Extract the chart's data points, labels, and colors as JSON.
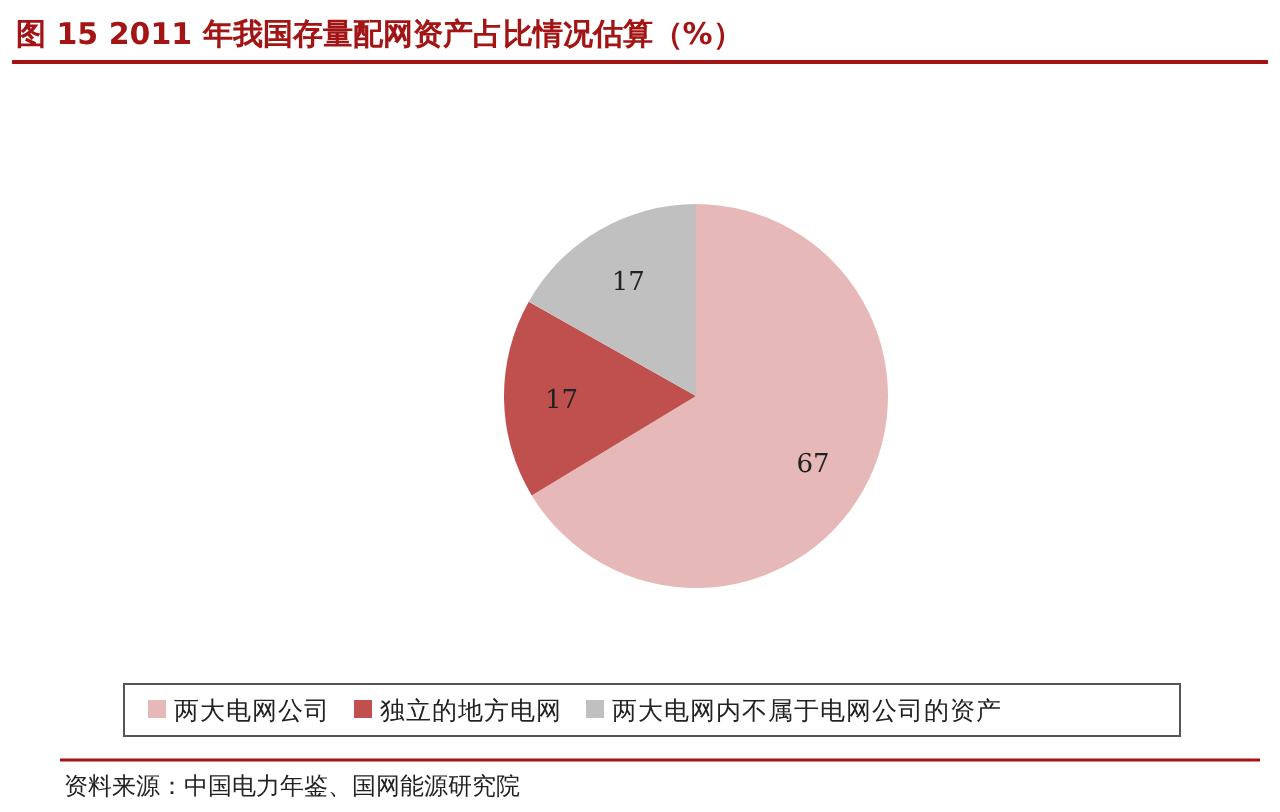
{
  "chart_data": {
    "type": "pie",
    "title": "图 15    2011 年我国存量配网资产占比情况估算（%）",
    "categories": [
      "两大电网公司",
      "独立的地方电网",
      "两大电网内不属于电网公司的资产"
    ],
    "values": [
      67,
      17,
      17
    ],
    "colors": [
      "#e6b9b8",
      "#c0504d",
      "#c0c0c0"
    ],
    "data_labels": true,
    "legend": "bottom",
    "annotations": [
      "资料来源：中国电力年鉴、国网能源研究院"
    ]
  }
}
